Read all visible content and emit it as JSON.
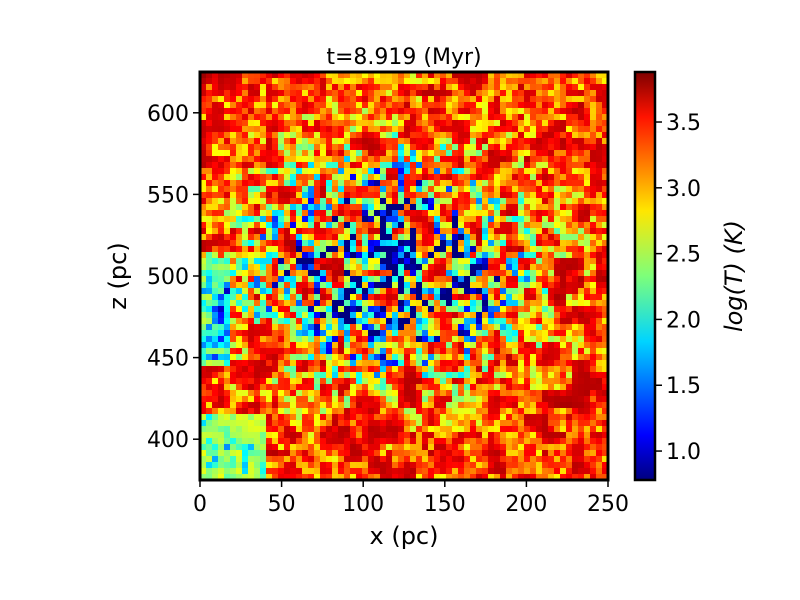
{
  "chart_data": {
    "type": "heatmap",
    "title": "t=8.919 (Myr)",
    "xlabel": "x (pc)",
    "ylabel": "z (pc)",
    "xlim": [
      0,
      250
    ],
    "ylim": [
      375,
      625
    ],
    "xticks": [
      0,
      50,
      100,
      150,
      200,
      250
    ],
    "yticks": [
      400,
      450,
      500,
      550,
      600
    ],
    "colorbar": {
      "label": "log(T) (K)",
      "colormap": "jet",
      "range": [
        0.78,
        3.88
      ],
      "ticks": [
        1.0,
        1.5,
        2.0,
        2.5,
        3.0,
        3.5
      ]
    },
    "field": "log(T) temperature map",
    "features": {
      "background_value": 3.8,
      "cold_filament_values": [
        1.2,
        2.2
      ],
      "intermediate_values": 3.2,
      "center": [
        115,
        505
      ]
    }
  },
  "colors": {
    "frame": "#000000",
    "background": "#ffffff"
  }
}
